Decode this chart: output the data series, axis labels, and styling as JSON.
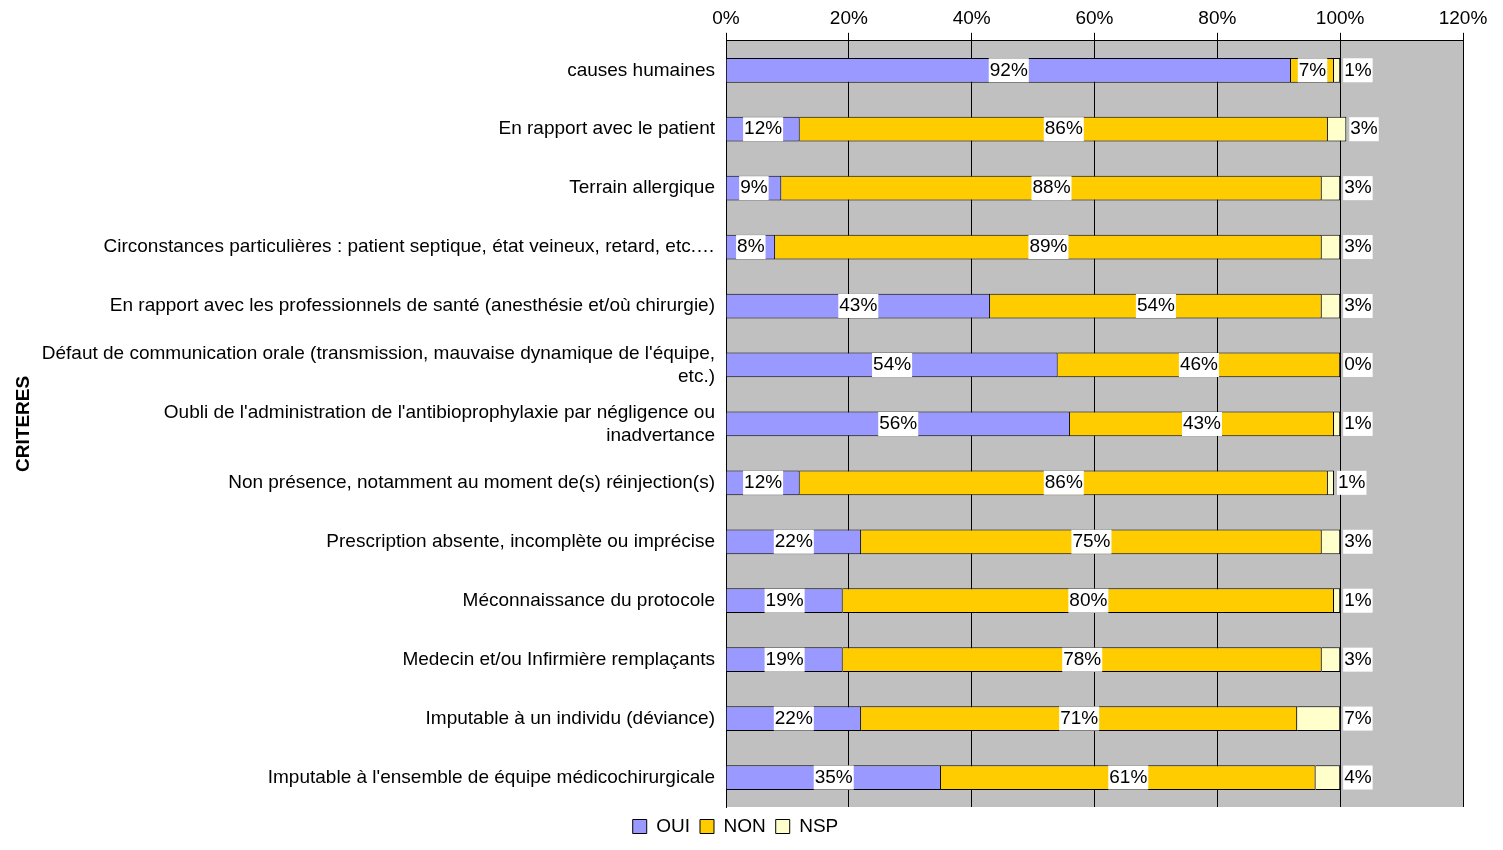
{
  "chart_data": {
    "type": "bar",
    "orientation": "horizontal",
    "stacked": true,
    "ylabel": "CRITERES",
    "categories": [
      "causes humaines",
      "En rapport avec le patient",
      "Terrain allergique",
      "Circonstances particulières : patient septique, état veineux, retard, etc.…",
      "En rapport avec les professionnels de santé (anesthésie et/où chirurgie)",
      "Défaut de communication orale (transmission, mauvaise dynamique de l'équipe, etc.)",
      "Oubli de l'administration de l'antibioprophylaxie par négligence ou inadvertance",
      "Non présence, notamment au moment de(s) réinjection(s)",
      "Prescription absente, incomplète ou imprécise",
      "Méconnaissance du protocole",
      "Medecin et/ou Infirmière remplaçants",
      "Imputable à un individu (déviance)",
      "Imputable à l'ensemble de équipe médicochirurgicale"
    ],
    "series": [
      {
        "name": "OUI",
        "color": "#9999ff",
        "values": [
          92,
          12,
          9,
          8,
          43,
          54,
          56,
          12,
          22,
          19,
          19,
          22,
          35
        ],
        "value_labels": [
          "92%",
          "12%",
          "9%",
          "8%",
          "43%",
          "54%",
          "56%",
          "12%",
          "22%",
          "19%",
          "19%",
          "22%",
          "35%"
        ]
      },
      {
        "name": "NON",
        "color": "#ffcc00",
        "values": [
          7,
          86,
          88,
          89,
          54,
          46,
          43,
          86,
          75,
          80,
          78,
          71,
          61
        ],
        "value_labels": [
          "7%",
          "86%",
          "88%",
          "89%",
          "54%",
          "46%",
          "43%",
          "86%",
          "75%",
          "80%",
          "78%",
          "71%",
          "61%"
        ]
      },
      {
        "name": "NSP",
        "color": "#ffffcc",
        "values": [
          1,
          3,
          3,
          3,
          3,
          0,
          1,
          1,
          3,
          1,
          3,
          7,
          4
        ],
        "value_labels": [
          "1%",
          "3%",
          "3%",
          "3%",
          "3%",
          "0%",
          "1%",
          "1%",
          "3%",
          "1%",
          "3%",
          "7%",
          "4%"
        ]
      }
    ],
    "xlim": [
      0,
      120
    ],
    "xticks": [
      {
        "value": 0,
        "label": "0%"
      },
      {
        "value": 20,
        "label": "20%"
      },
      {
        "value": 40,
        "label": "40%"
      },
      {
        "value": 60,
        "label": "60%"
      },
      {
        "value": 80,
        "label": "80%"
      },
      {
        "value": 100,
        "label": "100%"
      },
      {
        "value": 120,
        "label": "120%"
      }
    ],
    "grid": "x",
    "legend": "bottom"
  }
}
